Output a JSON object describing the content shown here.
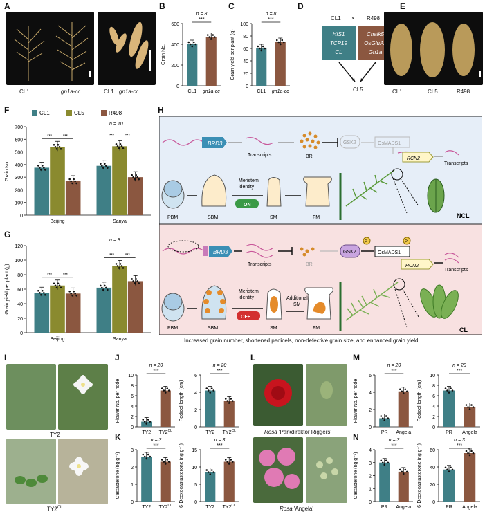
{
  "panels": {
    "A": "A",
    "B": "B",
    "C": "C",
    "D": "D",
    "E": "E",
    "F": "F",
    "G": "G",
    "H": "H",
    "I": "I",
    "J": "J",
    "K": "K",
    "L": "L",
    "M": "M",
    "N": "N"
  },
  "photoA": {
    "labels": [
      "CL1",
      "gn1a-cc",
      "CL1",
      "gn1a-cc"
    ]
  },
  "photoE": {
    "labels": [
      "CL1",
      "CL5",
      "R498"
    ]
  },
  "photoI": {
    "top_label": "TY2",
    "bottom_label": "TY2",
    "bottom_sup": "CL"
  },
  "photoL": {
    "top_label_it": "Rosa",
    "top_label": " 'Parkdirektor Riggers'",
    "bottom_label_it": "Rosa",
    "bottom_label": " 'Angela'"
  },
  "colors": {
    "teal": "#3f7f86",
    "olive": "#8a8a2f",
    "brown": "#8b5740",
    "blue_bg": "#e6eef8",
    "pink_bg": "#f8e1e1",
    "orange": "#e58b2a"
  },
  "cross": {
    "parent1": "CL1",
    "parent2": "R498",
    "times": "×",
    "child": "CL5",
    "genes1": [
      "HIS1",
      "TCP19",
      "CL"
    ],
    "genes2": [
      "Chalk5",
      "OsGluA2",
      "Gn1a"
    ]
  },
  "diagram": {
    "top": {
      "gene": "BRD3",
      "transcripts1": "Transcripts",
      "br": "BR",
      "gsk2": "GSK2",
      "osmads1": "OsMADS1",
      "rcn2": "RCN2",
      "transcripts2": "Transcripts",
      "pbm": "PBM",
      "sbm": "SBM",
      "sm": "SM",
      "fm": "FM",
      "meristem1": "Meristem",
      "meristem2": "identity",
      "switch": "ON",
      "tag": "NCL"
    },
    "bottom": {
      "gene": "BRD3",
      "transcripts1": "Transcripts",
      "br": "BR",
      "gsk2": "GSK2",
      "p": "P",
      "osmads1": "OsMADS1",
      "rcn2": "RCN2",
      "transcripts2": "Transcripts",
      "pbm": "PBM",
      "sbm": "SBM",
      "sm": "SM",
      "fm": "FM",
      "meristem1": "Meristem",
      "meristem2": "identity",
      "switch": "OFF",
      "additional1": "Additional",
      "additional2": "SM",
      "tag": "CL"
    },
    "caption": "Increased grain number, shortened pedicels, non-defective grain size, and enhanced grain yield."
  },
  "chart_data": [
    {
      "id": "B",
      "type": "bar",
      "categories": [
        "CL1",
        "gn1a-cc"
      ],
      "values": [
        400,
        470
      ],
      "ylabel": "Grain No.",
      "ylim": [
        0,
        600
      ],
      "yticks": [
        0,
        200,
        400,
        600
      ],
      "annotation": "n = 8",
      "sig": "***"
    },
    {
      "id": "C",
      "type": "bar",
      "categories": [
        "CL1",
        "gn1a-cc"
      ],
      "values": [
        60,
        70
      ],
      "ylabel": "Grain yield per plant (g)",
      "ylim": [
        0,
        100
      ],
      "yticks": [
        0,
        20,
        40,
        60,
        80,
        100
      ],
      "annotation": "n = 8",
      "sig": "***"
    },
    {
      "id": "F",
      "type": "bar",
      "categories": [
        "Beijing",
        "Sanya"
      ],
      "series": [
        {
          "name": "CL1",
          "values": [
            375,
            390
          ]
        },
        {
          "name": "CL5",
          "values": [
            540,
            545
          ]
        },
        {
          "name": "R498",
          "values": [
            268,
            300
          ]
        }
      ],
      "ylabel": "Grain No.",
      "ylim": [
        0,
        700
      ],
      "yticks": [
        0,
        100,
        200,
        300,
        400,
        500,
        600,
        700
      ],
      "annotation": "n = 10",
      "sig": "***"
    },
    {
      "id": "G",
      "type": "bar",
      "categories": [
        "Beijing",
        "Sanya"
      ],
      "series": [
        {
          "name": "CL1",
          "values": [
            55,
            62
          ]
        },
        {
          "name": "CL5",
          "values": [
            65,
            92
          ]
        },
        {
          "name": "R498",
          "values": [
            54,
            71
          ]
        }
      ],
      "ylabel": "Grain yield per plant (g)",
      "ylim": [
        0,
        120
      ],
      "yticks": [
        0,
        20,
        40,
        60,
        80,
        100,
        120
      ],
      "annotation": "n = 8",
      "sig": "***"
    },
    {
      "id": "J1",
      "type": "bar",
      "categories": [
        "TY2",
        "TY2CL"
      ],
      "values": [
        1,
        7
      ],
      "ylabel": "Flower No. per node",
      "ylim": [
        0,
        10
      ],
      "yticks": [
        0,
        2,
        4,
        6,
        8,
        10
      ],
      "annotation": "n = 20",
      "sig": "***"
    },
    {
      "id": "J2",
      "type": "bar",
      "categories": [
        "TY2",
        "TY2CL"
      ],
      "values": [
        4.2,
        3.0
      ],
      "ylabel": "Pedicel length (cm)",
      "ylim": [
        0,
        6
      ],
      "yticks": [
        0,
        2,
        4,
        6
      ],
      "annotation": "n = 20",
      "sig": "***"
    },
    {
      "id": "K1",
      "type": "bar",
      "categories": [
        "TY2",
        "TY2CL"
      ],
      "values": [
        2.6,
        2.3
      ],
      "ylabel": "Castasterone (ng g⁻¹)",
      "ylim": [
        0,
        3
      ],
      "yticks": [
        0,
        1,
        2,
        3
      ],
      "annotation": "n = 3",
      "sig": "***"
    },
    {
      "id": "K2",
      "type": "bar",
      "categories": [
        "TY2",
        "TY2CL"
      ],
      "values": [
        8.5,
        11.5
      ],
      "ylabel": "6-Deoxocastasterone (ng g⁻¹)",
      "ylim": [
        0,
        15
      ],
      "yticks": [
        0,
        5,
        10,
        15
      ],
      "annotation": "n = 3",
      "sig": "***"
    },
    {
      "id": "M1",
      "type": "bar",
      "categories": [
        "PR",
        "Angela"
      ],
      "values": [
        1,
        4.1
      ],
      "ylabel": "Flower No. per node",
      "ylim": [
        0,
        6
      ],
      "yticks": [
        0,
        2,
        4,
        6
      ],
      "annotation": "n = 20",
      "sig": "***"
    },
    {
      "id": "M2",
      "type": "bar",
      "categories": [
        "PR",
        "Angela"
      ],
      "values": [
        7,
        3.8
      ],
      "ylabel": "Pedicel length (cm)",
      "ylim": [
        0,
        10
      ],
      "yticks": [
        0,
        2,
        4,
        6,
        8,
        10
      ],
      "annotation": "n = 20",
      "sig": "***"
    },
    {
      "id": "N1",
      "type": "bar",
      "categories": [
        "PR",
        "Angela"
      ],
      "values": [
        3.0,
        2.3
      ],
      "ylabel": "Castasterone (ng g⁻¹)",
      "ylim": [
        0,
        4
      ],
      "yticks": [
        0,
        1,
        2,
        3,
        4
      ],
      "annotation": "n = 3",
      "sig": "***"
    },
    {
      "id": "N2",
      "type": "bar",
      "categories": [
        "PR",
        "Angela"
      ],
      "values": [
        37,
        56
      ],
      "ylabel": "6-Deoxocastasterone (ng g⁻¹)",
      "ylim": [
        0,
        60
      ],
      "yticks": [
        0,
        20,
        40,
        60
      ],
      "annotation": "n = 3",
      "sig": "***"
    }
  ]
}
